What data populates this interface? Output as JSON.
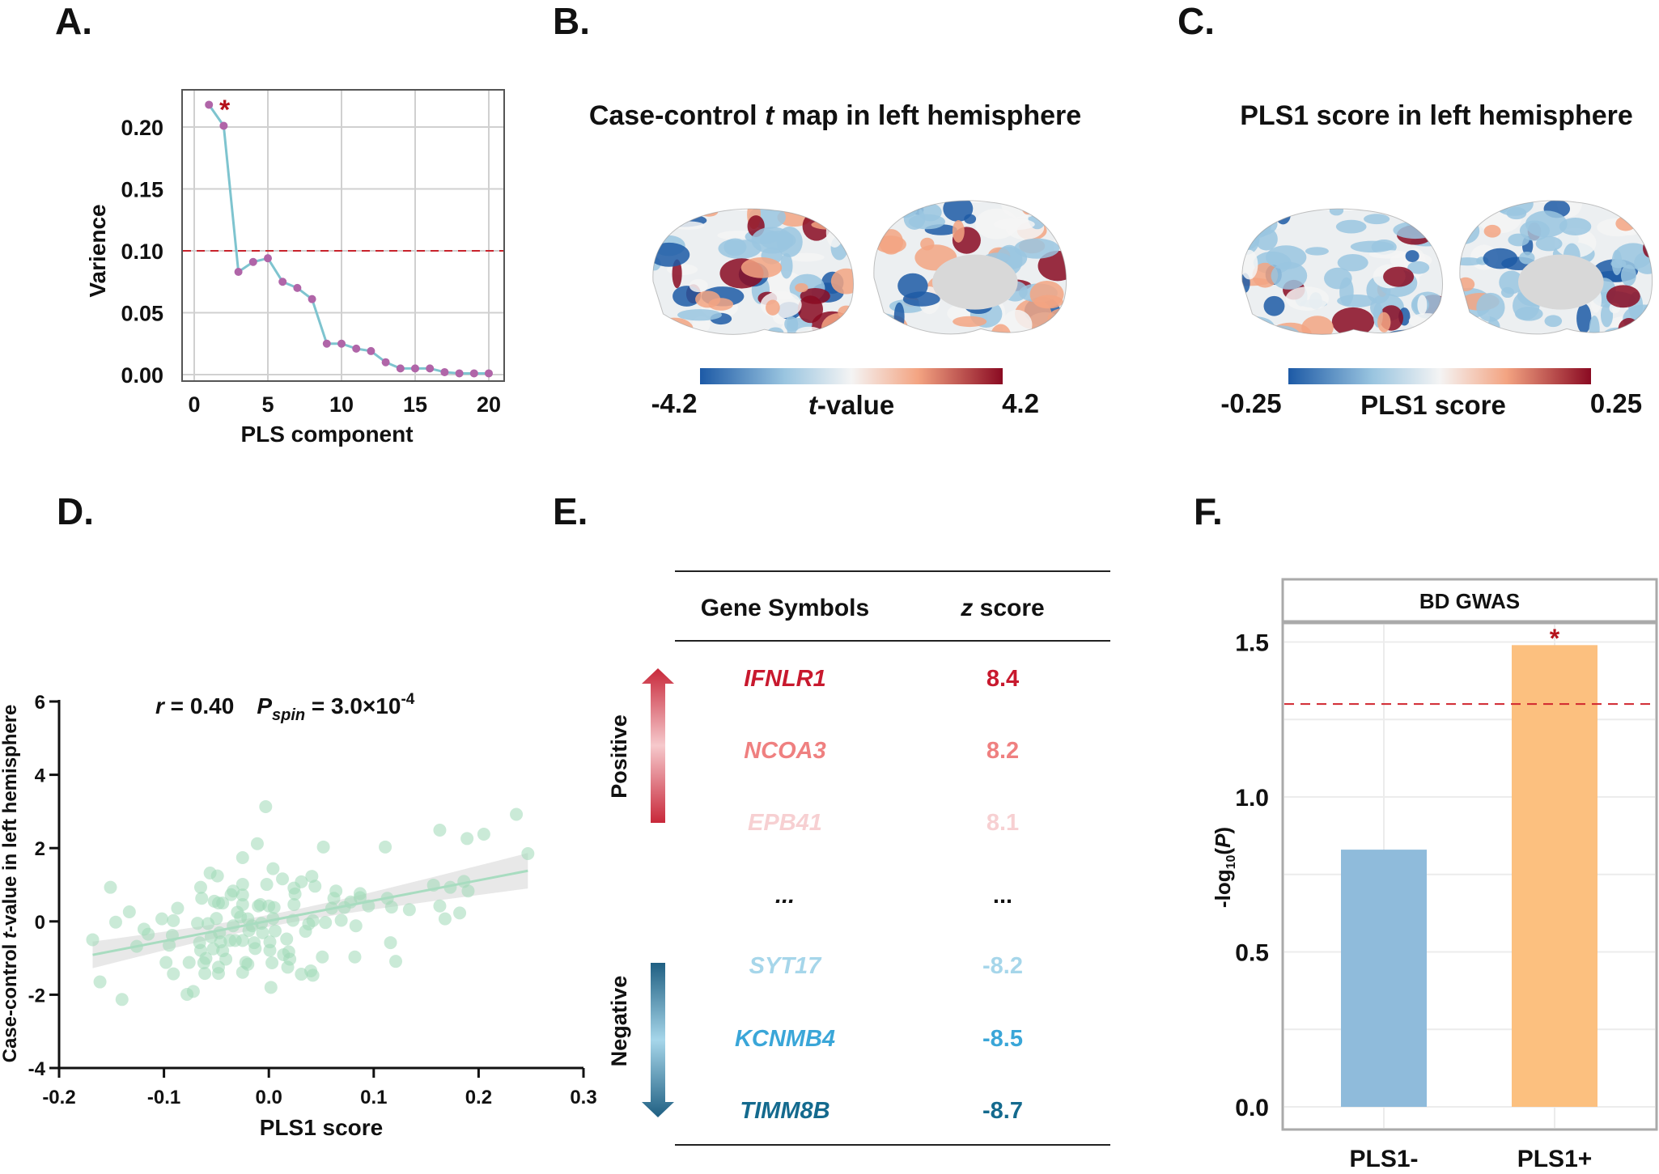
{
  "panel_labels": {
    "a": "A.",
    "b": "B.",
    "c": "C.",
    "d": "D.",
    "e": "E.",
    "f": "F."
  },
  "chart_data": [
    {
      "id": "A",
      "type": "line",
      "xlabel": "PLS component",
      "ylabel": "Varience",
      "x": [
        1,
        2,
        3,
        4,
        5,
        6,
        7,
        8,
        9,
        10,
        11,
        12,
        13,
        14,
        15,
        16,
        17,
        18,
        19,
        20
      ],
      "values": [
        0.218,
        0.201,
        0.083,
        0.091,
        0.094,
        0.075,
        0.07,
        0.061,
        0.025,
        0.025,
        0.021,
        0.019,
        0.01,
        0.005,
        0.005,
        0.005,
        0.002,
        0.001,
        0.001,
        0.001
      ],
      "xlim": [
        -1,
        21
      ],
      "ylim": [
        -0.005,
        0.225
      ],
      "xticks": [
        "0",
        "5",
        "10",
        "15",
        "20"
      ],
      "yticks": [
        "0.00",
        "0.05",
        "0.10",
        "0.15",
        "0.20"
      ],
      "threshold": 0.1,
      "significance_marker": "*",
      "grid": true,
      "colors": {
        "line": "#7ec4cf",
        "marker": "#b065a8",
        "threshold": "#c8232c",
        "star": "#b5121b"
      }
    },
    {
      "id": "D",
      "type": "scatter",
      "xlabel": "PLS1 score",
      "ylabel_parts": [
        "Case-control ",
        "t",
        "-value in left hemisphere"
      ],
      "annotation": {
        "r_sym": "r",
        "r_text": " = 0.40",
        "p_sym": "P",
        "p_sub": "spin",
        "p_text": " = 3.0×10",
        "p_sup": "-4"
      },
      "xlim": [
        -0.2,
        0.3
      ],
      "ylim": [
        -4,
        6
      ],
      "xticks": [
        "-0.2",
        "-0.1",
        "0.0",
        "0.1",
        "0.2",
        "0.3"
      ],
      "yticks": [
        "-4",
        "-2",
        "0",
        "2",
        "4",
        "6"
      ],
      "grid": false,
      "colors": {
        "point": "#9ed8b6",
        "fit": "#a8dcc0",
        "band": "#d9d9d9"
      },
      "points": [
        [
          -0.168,
          -0.5
        ],
        [
          -0.161,
          -1.65
        ],
        [
          -0.151,
          0.93
        ],
        [
          -0.146,
          -0.02
        ],
        [
          -0.14,
          -2.13
        ],
        [
          -0.133,
          0.26
        ],
        [
          -0.126,
          -0.68
        ],
        [
          -0.119,
          -0.21
        ],
        [
          -0.115,
          -0.35
        ],
        [
          -0.102,
          0.07
        ],
        [
          -0.098,
          -1.12
        ],
        [
          -0.095,
          -0.65
        ],
        [
          -0.092,
          -0.38
        ],
        [
          -0.091,
          0.02
        ],
        [
          -0.091,
          -1.43
        ],
        [
          -0.087,
          0.36
        ],
        [
          -0.078,
          -1.99
        ],
        [
          -0.076,
          -1.12
        ],
        [
          -0.072,
          -1.91
        ],
        [
          -0.068,
          -0.05
        ],
        [
          -0.065,
          0.93
        ],
        [
          -0.064,
          0.63
        ],
        [
          -0.066,
          -0.58
        ],
        [
          -0.065,
          -0.79
        ],
        [
          -0.062,
          -1.13
        ],
        [
          -0.061,
          -1.42
        ],
        [
          -0.06,
          -1.01
        ],
        [
          -0.058,
          -0.06
        ],
        [
          -0.056,
          1.32
        ],
        [
          -0.055,
          -0.42
        ],
        [
          -0.053,
          -0.75
        ],
        [
          -0.052,
          0.55
        ],
        [
          -0.05,
          0.08
        ],
        [
          -0.049,
          1.24
        ],
        [
          -0.048,
          0.5
        ],
        [
          -0.048,
          -1.25
        ],
        [
          -0.048,
          -1.42
        ],
        [
          -0.047,
          -0.31
        ],
        [
          -0.046,
          -0.56
        ],
        [
          -0.044,
          -0.8
        ],
        [
          -0.044,
          0.5
        ],
        [
          -0.041,
          -1.03
        ],
        [
          -0.037,
          -0.52
        ],
        [
          -0.036,
          0.73
        ],
        [
          -0.034,
          0.83
        ],
        [
          -0.034,
          -0.12
        ],
        [
          -0.032,
          -0.52
        ],
        [
          -0.03,
          0.25
        ],
        [
          -0.027,
          0.12
        ],
        [
          -0.025,
          1.74
        ],
        [
          -0.025,
          1.01
        ],
        [
          -0.025,
          0.72
        ],
        [
          -0.025,
          0.46
        ],
        [
          -0.025,
          -0.52
        ],
        [
          -0.025,
          -1.39
        ],
        [
          -0.022,
          -1.12
        ],
        [
          -0.02,
          0.07
        ],
        [
          -0.02,
          -1.17
        ],
        [
          -0.019,
          -0.25
        ],
        [
          -0.016,
          -0.12
        ],
        [
          -0.014,
          -0.58
        ],
        [
          -0.013,
          -0.74
        ],
        [
          -0.011,
          2.12
        ],
        [
          -0.01,
          0.42
        ],
        [
          -0.008,
          0.46
        ],
        [
          -0.007,
          -0.05
        ],
        [
          -0.006,
          -0.31
        ],
        [
          -0.003,
          3.13
        ],
        [
          -0.002,
          1.01
        ],
        [
          0.0,
          0.42
        ],
        [
          0.001,
          -0.56
        ],
        [
          0.001,
          -0.79
        ],
        [
          0.002,
          -1.8
        ],
        [
          0.003,
          -1.13
        ],
        [
          0.004,
          1.44
        ],
        [
          0.004,
          0.08
        ],
        [
          0.005,
          0.38
        ],
        [
          0.006,
          -0.26
        ],
        [
          0.013,
          1.16
        ],
        [
          0.014,
          -0.91
        ],
        [
          0.017,
          -0.48
        ],
        [
          0.018,
          -1.25
        ],
        [
          0.019,
          -0.83
        ],
        [
          0.02,
          -1.03
        ],
        [
          0.023,
          0.03
        ],
        [
          0.024,
          0.91
        ],
        [
          0.024,
          0.46
        ],
        [
          0.025,
          0.75
        ],
        [
          0.031,
          1.08
        ],
        [
          0.031,
          -1.44
        ],
        [
          0.035,
          -0.27
        ],
        [
          0.038,
          -0.07
        ],
        [
          0.04,
          -1.35
        ],
        [
          0.041,
          1.23
        ],
        [
          0.042,
          -1.47
        ],
        [
          0.042,
          0.02
        ],
        [
          0.044,
          0.96
        ],
        [
          0.051,
          -0.97
        ],
        [
          0.052,
          2.03
        ],
        [
          0.054,
          -0.03
        ],
        [
          0.06,
          0.36
        ],
        [
          0.062,
          0.63
        ],
        [
          0.064,
          0.83
        ],
        [
          0.069,
          0.03
        ],
        [
          0.072,
          0.38
        ],
        [
          0.078,
          0.53
        ],
        [
          0.082,
          -0.97
        ],
        [
          0.083,
          -0.12
        ],
        [
          0.087,
          0.76
        ],
        [
          0.087,
          0.65
        ],
        [
          0.095,
          0.42
        ],
        [
          0.111,
          2.03
        ],
        [
          0.113,
          0.63
        ],
        [
          0.116,
          -0.58
        ],
        [
          0.117,
          0.39
        ],
        [
          0.121,
          -1.09
        ],
        [
          0.134,
          0.32
        ],
        [
          0.157,
          0.99
        ],
        [
          0.163,
          2.49
        ],
        [
          0.163,
          0.42
        ],
        [
          0.168,
          0.07
        ],
        [
          0.173,
          0.93
        ],
        [
          0.182,
          0.23
        ],
        [
          0.186,
          1.09
        ],
        [
          0.189,
          2.26
        ],
        [
          0.19,
          0.83
        ],
        [
          0.205,
          2.38
        ],
        [
          0.236,
          2.92
        ],
        [
          0.247,
          1.85
        ]
      ]
    },
    {
      "id": "F",
      "type": "bar",
      "panel_title": "BD GWAS",
      "categories": [
        "PLS1-",
        "PLS1+"
      ],
      "values": [
        0.83,
        1.49
      ],
      "ylabel_parts": [
        "-log",
        "10",
        "(",
        "P",
        ")"
      ],
      "ylim": [
        -0.07,
        1.65
      ],
      "yticks": [
        "0.0",
        "0.5",
        "1.0",
        "1.5"
      ],
      "threshold": 1.3,
      "significance_marker": "*",
      "grid": true,
      "colors": {
        "PLS1-": "#8fbbdb",
        "PLS1+": "#fcc07f",
        "threshold": "#d0262e",
        "star": "#b5121b"
      }
    }
  ],
  "brain_maps": {
    "b": {
      "title_parts": [
        "Case-control ",
        "t",
        " map in left hemisphere"
      ],
      "cb_min": "-4.2",
      "cb_max": "4.2",
      "cb_label_parts": [
        "t",
        "-value"
      ]
    },
    "c": {
      "title": "PLS1 score in left hemisphere",
      "cb_min": "-0.25",
      "cb_max": "0.25",
      "cb_label": "PLS1 score"
    },
    "colormap": [
      "#1d5aa6",
      "#9ac5e0",
      "#f4f4f4",
      "#f3a482",
      "#8a0a22"
    ]
  },
  "gene_table": {
    "headers": {
      "gene": "Gene Symbols",
      "z_sym": "z",
      "z_rest": " score"
    },
    "positive_label": "Positive",
    "negative_label": "Negative",
    "rows": [
      {
        "gene": "IFNLR1",
        "z": "8.4",
        "color": "#c8192e"
      },
      {
        "gene": "NCOA3",
        "z": "8.2",
        "color": "#ef8080"
      },
      {
        "gene": "EPB41",
        "z": "8.1",
        "color": "#f7d0d2"
      },
      {
        "gene": "...",
        "z": "...",
        "color": "#111111"
      },
      {
        "gene": "SYT17",
        "z": "-8.2",
        "color": "#a6d6ea"
      },
      {
        "gene": "KCNMB4",
        "z": "-8.5",
        "color": "#3aa6d8"
      },
      {
        "gene": "TIMM8B",
        "z": "-8.7",
        "color": "#146a8e"
      }
    ]
  }
}
